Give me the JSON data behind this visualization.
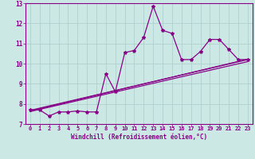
{
  "xlabel": "Windchill (Refroidissement éolien,°C)",
  "bg_color": "#cce8e4",
  "grid_color": "#aacccc",
  "line_color": "#880088",
  "xlim": [
    -0.5,
    23.5
  ],
  "ylim": [
    7,
    13
  ],
  "xticks": [
    0,
    1,
    2,
    3,
    4,
    5,
    6,
    7,
    8,
    9,
    10,
    11,
    12,
    13,
    14,
    15,
    16,
    17,
    18,
    19,
    20,
    21,
    22,
    23
  ],
  "yticks": [
    7,
    8,
    9,
    10,
    11,
    12,
    13
  ],
  "series1_x": [
    0,
    1,
    2,
    3,
    4,
    5,
    6,
    7,
    8,
    9,
    10,
    11,
    12,
    13,
    14,
    15,
    16,
    17,
    18,
    19,
    20,
    21,
    22,
    23
  ],
  "series1_y": [
    7.7,
    7.7,
    7.4,
    7.6,
    7.6,
    7.65,
    7.6,
    7.6,
    9.5,
    8.6,
    10.55,
    10.65,
    11.3,
    12.85,
    11.65,
    11.5,
    10.2,
    10.2,
    10.6,
    11.2,
    11.2,
    10.7,
    10.2,
    10.2
  ],
  "series2_x": [
    0,
    23
  ],
  "series2_y": [
    7.62,
    10.1
  ],
  "series3_x": [
    0,
    23
  ],
  "series3_y": [
    7.68,
    10.2
  ],
  "series4_x": [
    0,
    23
  ],
  "series4_y": [
    7.65,
    10.22
  ]
}
